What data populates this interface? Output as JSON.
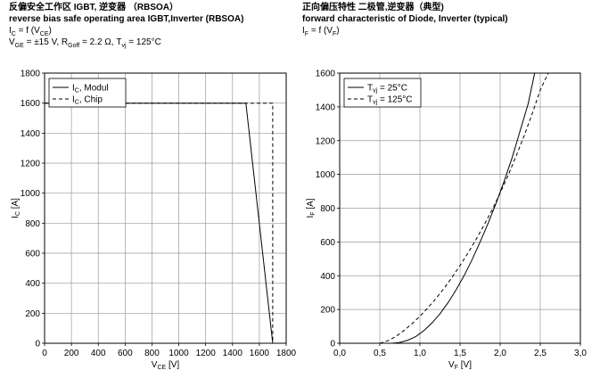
{
  "charts": [
    {
      "title_cn": "反偏安全工作区 IGBT, 逆变器 （RBSOA）",
      "title_en": "reverse bias safe operating area IGBT,Inverter (RBSOA)",
      "formula": {
        "a": "I",
        "a_sub": "C",
        "b": " = f (V",
        "b_sub": "CE",
        "c": ")"
      },
      "conditions": {
        "a": "V",
        "a_sub": "GE",
        "b": " = ±15 V, R",
        "b_sub": "Goff",
        "c": " = 2.2 Ω, T",
        "c_sub": "vj",
        "d": " = 125°C"
      }
    },
    {
      "title_cn": "正向偏压特性 二极管,逆变器（典型)",
      "title_en": "forward characteristic of Diode, Inverter (typical)",
      "formula": {
        "a": "I",
        "a_sub": "F",
        "b": " = f (V",
        "b_sub": "F",
        "c": ")"
      }
    }
  ],
  "chart_data": [
    {
      "type": "line",
      "title": "reverse bias safe operating area IGBT,Inverter (RBSOA)",
      "xlabel": {
        "main": "V",
        "sub": "CE",
        "unit": " [V]"
      },
      "ylabel": {
        "main": "I",
        "sub": "C",
        "unit": " [A]"
      },
      "xlim": [
        0,
        1800
      ],
      "ylim": [
        0,
        1800
      ],
      "xticks": [
        0,
        200,
        400,
        600,
        800,
        1000,
        1200,
        1400,
        1600,
        1800
      ],
      "xtick_labels": [
        "0",
        "200",
        "400",
        "600",
        "800",
        "1000",
        "1200",
        "1400",
        "1600",
        "1800"
      ],
      "yticks": [
        0,
        200,
        400,
        600,
        800,
        1000,
        1200,
        1400,
        1600,
        1800
      ],
      "ytick_labels": [
        "0",
        "200",
        "400",
        "600",
        "800",
        "1000",
        "1200",
        "1400",
        "1600",
        "1800"
      ],
      "grid": true,
      "legend_position": "top-left",
      "series": [
        {
          "name": "I",
          "name_sub": "C",
          "name_rest": ", Modul",
          "dash": false,
          "x": [
            0,
            1500,
            1700
          ],
          "y": [
            1600,
            1600,
            0
          ]
        },
        {
          "name": "I",
          "name_sub": "C",
          "name_rest": ", Chip",
          "dash": true,
          "x": [
            0,
            1700,
            1700
          ],
          "y": [
            1600,
            1600,
            0
          ]
        }
      ]
    },
    {
      "type": "line",
      "title": "forward characteristic of Diode, Inverter (typical)",
      "xlabel": {
        "main": "V",
        "sub": "F",
        "unit": " [V]"
      },
      "ylabel": {
        "main": "I",
        "sub": "F",
        "unit": " [A]"
      },
      "xlim": [
        0,
        3.0
      ],
      "ylim": [
        0,
        1600
      ],
      "xticks": [
        0,
        0.5,
        1.0,
        1.5,
        2.0,
        2.5,
        3.0
      ],
      "xtick_labels": [
        "0,0",
        "0,5",
        "1,0",
        "1,5",
        "2,0",
        "2,5",
        "3,0"
      ],
      "yticks": [
        0,
        200,
        400,
        600,
        800,
        1000,
        1200,
        1400,
        1600
      ],
      "ytick_labels": [
        "0",
        "200",
        "400",
        "600",
        "800",
        "1000",
        "1200",
        "1400",
        "1600"
      ],
      "grid": true,
      "legend_position": "top-left",
      "series": [
        {
          "name": "T",
          "name_sub": "vj",
          "name_rest": " = 25°C",
          "dash": false,
          "x": [
            0.65,
            0.75,
            0.85,
            0.95,
            1.05,
            1.15,
            1.25,
            1.35,
            1.45,
            1.55,
            1.65,
            1.75,
            1.85,
            1.95,
            2.05,
            2.15,
            2.25,
            2.35,
            2.43
          ],
          "y": [
            0,
            5,
            18,
            40,
            75,
            120,
            175,
            240,
            315,
            400,
            495,
            600,
            710,
            830,
            960,
            1100,
            1260,
            1420,
            1600
          ]
        },
        {
          "name": "T",
          "name_sub": "vj",
          "name_rest": " = 125°C",
          "dash": true,
          "x": [
            0.5,
            0.6,
            0.7,
            0.8,
            0.9,
            1.0,
            1.1,
            1.2,
            1.3,
            1.4,
            1.5,
            1.6,
            1.7,
            1.8,
            1.9,
            2.0,
            2.1,
            2.2,
            2.3,
            2.4,
            2.5,
            2.6
          ],
          "y": [
            0,
            15,
            40,
            75,
            115,
            160,
            210,
            265,
            325,
            390,
            460,
            535,
            615,
            700,
            790,
            890,
            995,
            1110,
            1230,
            1360,
            1500,
            1600
          ]
        }
      ]
    }
  ]
}
